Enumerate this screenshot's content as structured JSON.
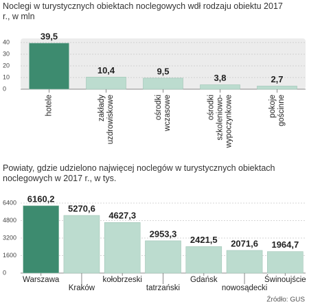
{
  "chart_data": [
    {
      "type": "bar",
      "title": "Noclegi w turystycznych obiektach noclegowych wdł rodzaju obiektu 2017 r., w mln",
      "categories": [
        "hotele",
        "zakłady uzdrowiskowe",
        "ośrodki wczasowe",
        "ośrodki szkoleniowo-wypoczynkowe",
        "pokoje gościnne"
      ],
      "values": [
        39.5,
        10.4,
        9.5,
        3.8,
        2.7
      ],
      "value_labels": [
        "39,5",
        "10,4",
        "9,5",
        "3,8",
        "2,7"
      ],
      "colors": [
        "#3d8b6f",
        "#bcdccf",
        "#bcdccf",
        "#bcdccf",
        "#bcdccf"
      ],
      "ylim": [
        0,
        40
      ],
      "yticks": [
        0,
        10,
        20,
        30,
        40
      ],
      "grid": true
    },
    {
      "type": "bar",
      "title": "Powiaty, gdzie udzielono najwięcej noclegów w turystycznych obiektach noclegowych w 2017 r., w tys.",
      "categories": [
        "Warszawa",
        "Kraków",
        "kołobrzeski",
        "tatrzański",
        "Gdańsk",
        "nowosądecki",
        "Świnoujście"
      ],
      "values": [
        6160.2,
        5270.6,
        4627.3,
        2953.3,
        2421.5,
        2071.6,
        1964.7
      ],
      "value_labels": [
        "6160,2",
        "5270,6",
        "4627,3",
        "2953,3",
        "2421,5",
        "2071,6",
        "1964,7"
      ],
      "colors": [
        "#3d8b6f",
        "#bcdccf",
        "#bcdccf",
        "#bcdccf",
        "#bcdccf",
        "#bcdccf",
        "#bcdccf"
      ],
      "ylim": [
        0,
        6400
      ],
      "yticks": [
        0,
        1600,
        3200,
        4800,
        6400
      ],
      "grid": true,
      "source": "Źródło: GUS"
    }
  ]
}
